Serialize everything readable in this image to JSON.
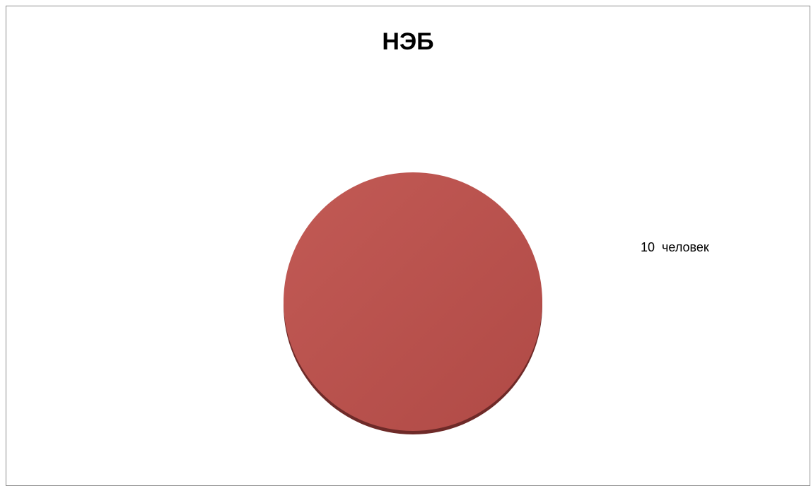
{
  "chart_data": {
    "type": "pie",
    "title": "НЭБ",
    "slices": [
      {
        "label": "10  человек",
        "value": 10,
        "color": "#b84f4b"
      }
    ],
    "legend": "none"
  }
}
